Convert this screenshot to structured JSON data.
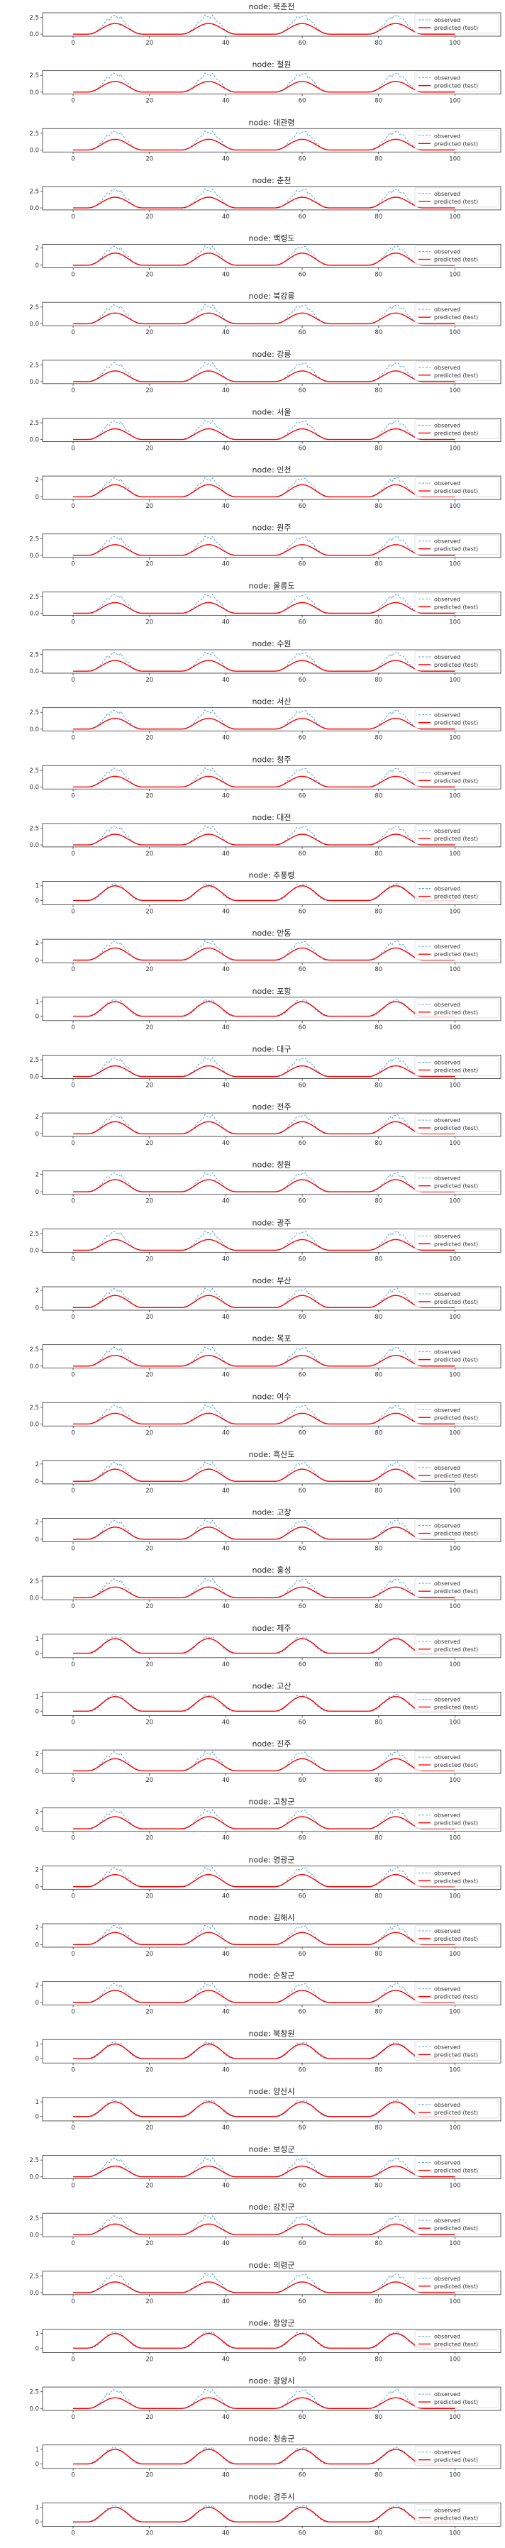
{
  "legend": {
    "observed": "observed",
    "predicted": "predicted (test)",
    "position": "top-right"
  },
  "colors": {
    "observed": "#5da5da",
    "predicted": "#ff0000",
    "axis": "#333333"
  },
  "x_ticks": [
    0,
    20,
    40,
    60,
    80,
    100
  ],
  "chart_data": [
    {
      "type": "line",
      "title": "node: 북춘천",
      "ylim": [
        -0.3,
        3.2
      ],
      "y_ticks": [
        0.0,
        2.5
      ],
      "obs_peak": 2.7,
      "pred_peak": 1.6,
      "series": [
        {
          "name": "observed"
        },
        {
          "name": "predicted (test)"
        }
      ]
    },
    {
      "type": "line",
      "title": "node: 철원",
      "ylim": [
        -0.3,
        3.2
      ],
      "y_ticks": [
        0.0,
        2.5
      ],
      "obs_peak": 2.7,
      "pred_peak": 1.6,
      "series": [
        {
          "name": "observed"
        },
        {
          "name": "predicted (test)"
        }
      ]
    },
    {
      "type": "line",
      "title": "node: 대관령",
      "ylim": [
        -0.3,
        3.2
      ],
      "y_ticks": [
        0.0,
        2.5
      ],
      "obs_peak": 2.7,
      "pred_peak": 1.6,
      "series": [
        {
          "name": "observed"
        },
        {
          "name": "predicted (test)"
        }
      ]
    },
    {
      "type": "line",
      "title": "node: 춘천",
      "ylim": [
        -0.3,
        3.2
      ],
      "y_ticks": [
        0.0,
        2.5
      ],
      "obs_peak": 2.7,
      "pred_peak": 1.6,
      "series": [
        {
          "name": "observed"
        },
        {
          "name": "predicted (test)"
        }
      ]
    },
    {
      "type": "line",
      "title": "node: 백령도",
      "ylim": [
        -0.3,
        2.4
      ],
      "y_ticks": [
        0,
        2
      ],
      "obs_peak": 2.1,
      "pred_peak": 1.4,
      "series": [
        {
          "name": "observed"
        },
        {
          "name": "predicted (test)"
        }
      ]
    },
    {
      "type": "line",
      "title": "node: 북강릉",
      "ylim": [
        -0.3,
        3.2
      ],
      "y_ticks": [
        0.0,
        2.5
      ],
      "obs_peak": 2.7,
      "pred_peak": 1.6,
      "series": [
        {
          "name": "observed"
        },
        {
          "name": "predicted (test)"
        }
      ]
    },
    {
      "type": "line",
      "title": "node: 강릉",
      "ylim": [
        -0.3,
        3.2
      ],
      "y_ticks": [
        0.0,
        2.5
      ],
      "obs_peak": 2.7,
      "pred_peak": 1.6,
      "series": [
        {
          "name": "observed"
        },
        {
          "name": "predicted (test)"
        }
      ]
    },
    {
      "type": "line",
      "title": "node: 서울",
      "ylim": [
        -0.3,
        3.2
      ],
      "y_ticks": [
        0.0,
        2.5
      ],
      "obs_peak": 2.7,
      "pred_peak": 1.6,
      "series": [
        {
          "name": "observed"
        },
        {
          "name": "predicted (test)"
        }
      ]
    },
    {
      "type": "line",
      "title": "node: 인천",
      "ylim": [
        -0.3,
        2.4
      ],
      "y_ticks": [
        0,
        2
      ],
      "obs_peak": 2.1,
      "pred_peak": 1.4,
      "series": [
        {
          "name": "observed"
        },
        {
          "name": "predicted (test)"
        }
      ]
    },
    {
      "type": "line",
      "title": "node: 원주",
      "ylim": [
        -0.3,
        3.2
      ],
      "y_ticks": [
        0.0,
        2.5
      ],
      "obs_peak": 2.7,
      "pred_peak": 1.6,
      "series": [
        {
          "name": "observed"
        },
        {
          "name": "predicted (test)"
        }
      ]
    },
    {
      "type": "line",
      "title": "node: 울릉도",
      "ylim": [
        -0.3,
        3.2
      ],
      "y_ticks": [
        0.0,
        2.5
      ],
      "obs_peak": 2.7,
      "pred_peak": 1.6,
      "series": [
        {
          "name": "observed"
        },
        {
          "name": "predicted (test)"
        }
      ]
    },
    {
      "type": "line",
      "title": "node: 수원",
      "ylim": [
        -0.3,
        3.2
      ],
      "y_ticks": [
        0.0,
        2.5
      ],
      "obs_peak": 2.7,
      "pred_peak": 1.6,
      "series": [
        {
          "name": "observed"
        },
        {
          "name": "predicted (test)"
        }
      ]
    },
    {
      "type": "line",
      "title": "node: 서산",
      "ylim": [
        -0.3,
        3.2
      ],
      "y_ticks": [
        0.0,
        2.5
      ],
      "obs_peak": 2.7,
      "pred_peak": 1.6,
      "series": [
        {
          "name": "observed"
        },
        {
          "name": "predicted (test)"
        }
      ]
    },
    {
      "type": "line",
      "title": "node: 청주",
      "ylim": [
        -0.3,
        3.2
      ],
      "y_ticks": [
        0.0,
        2.5
      ],
      "obs_peak": 2.7,
      "pred_peak": 1.6,
      "series": [
        {
          "name": "observed"
        },
        {
          "name": "predicted (test)"
        }
      ]
    },
    {
      "type": "line",
      "title": "node: 대전",
      "ylim": [
        -0.3,
        3.2
      ],
      "y_ticks": [
        0.0,
        2.5
      ],
      "obs_peak": 2.7,
      "pred_peak": 1.6,
      "series": [
        {
          "name": "observed"
        },
        {
          "name": "predicted (test)"
        }
      ]
    },
    {
      "type": "line",
      "title": "node: 추풍령",
      "ylim": [
        -0.3,
        1.3
      ],
      "y_ticks": [
        0,
        1
      ],
      "obs_peak": 1.1,
      "pred_peak": 1.0,
      "series": [
        {
          "name": "observed"
        },
        {
          "name": "predicted (test)"
        }
      ]
    },
    {
      "type": "line",
      "title": "node: 안동",
      "ylim": [
        -0.3,
        2.4
      ],
      "y_ticks": [
        0,
        2
      ],
      "obs_peak": 2.1,
      "pred_peak": 1.4,
      "series": [
        {
          "name": "observed"
        },
        {
          "name": "predicted (test)"
        }
      ]
    },
    {
      "type": "line",
      "title": "node: 포항",
      "ylim": [
        -0.3,
        1.3
      ],
      "y_ticks": [
        0,
        1
      ],
      "obs_peak": 1.1,
      "pred_peak": 1.0,
      "series": [
        {
          "name": "observed"
        },
        {
          "name": "predicted (test)"
        }
      ]
    },
    {
      "type": "line",
      "title": "node: 대구",
      "ylim": [
        -0.3,
        3.2
      ],
      "y_ticks": [
        0.0,
        2.5
      ],
      "obs_peak": 2.7,
      "pred_peak": 1.6,
      "series": [
        {
          "name": "observed"
        },
        {
          "name": "predicted (test)"
        }
      ]
    },
    {
      "type": "line",
      "title": "node: 전주",
      "ylim": [
        -0.3,
        2.4
      ],
      "y_ticks": [
        0,
        2
      ],
      "obs_peak": 2.1,
      "pred_peak": 1.4,
      "series": [
        {
          "name": "observed"
        },
        {
          "name": "predicted (test)"
        }
      ]
    },
    {
      "type": "line",
      "title": "node: 창원",
      "ylim": [
        -0.3,
        2.4
      ],
      "y_ticks": [
        0,
        2
      ],
      "obs_peak": 2.1,
      "pred_peak": 1.4,
      "series": [
        {
          "name": "observed"
        },
        {
          "name": "predicted (test)"
        }
      ]
    },
    {
      "type": "line",
      "title": "node: 광주",
      "ylim": [
        -0.3,
        3.2
      ],
      "y_ticks": [
        0.0,
        2.5
      ],
      "obs_peak": 2.7,
      "pred_peak": 1.6,
      "series": [
        {
          "name": "observed"
        },
        {
          "name": "predicted (test)"
        }
      ]
    },
    {
      "type": "line",
      "title": "node: 부산",
      "ylim": [
        -0.3,
        2.4
      ],
      "y_ticks": [
        0,
        2
      ],
      "obs_peak": 2.1,
      "pred_peak": 1.4,
      "series": [
        {
          "name": "observed"
        },
        {
          "name": "predicted (test)"
        }
      ]
    },
    {
      "type": "line",
      "title": "node: 목포",
      "ylim": [
        -0.3,
        3.2
      ],
      "y_ticks": [
        0.0,
        2.5
      ],
      "obs_peak": 2.7,
      "pred_peak": 1.6,
      "series": [
        {
          "name": "observed"
        },
        {
          "name": "predicted (test)"
        }
      ]
    },
    {
      "type": "line",
      "title": "node: 여수",
      "ylim": [
        -0.3,
        3.2
      ],
      "y_ticks": [
        0.0,
        2.5
      ],
      "obs_peak": 2.7,
      "pred_peak": 1.6,
      "series": [
        {
          "name": "observed"
        },
        {
          "name": "predicted (test)"
        }
      ]
    },
    {
      "type": "line",
      "title": "node: 흑산도",
      "ylim": [
        -0.3,
        2.4
      ],
      "y_ticks": [
        0,
        2
      ],
      "obs_peak": 2.1,
      "pred_peak": 1.4,
      "series": [
        {
          "name": "observed"
        },
        {
          "name": "predicted (test)"
        }
      ]
    },
    {
      "type": "line",
      "title": "node: 고창",
      "ylim": [
        -0.3,
        2.4
      ],
      "y_ticks": [
        0,
        2
      ],
      "obs_peak": 2.1,
      "pred_peak": 1.4,
      "series": [
        {
          "name": "observed"
        },
        {
          "name": "predicted (test)"
        }
      ]
    },
    {
      "type": "line",
      "title": "node: 홍성",
      "ylim": [
        -0.3,
        3.2
      ],
      "y_ticks": [
        0.0,
        2.5
      ],
      "obs_peak": 2.7,
      "pred_peak": 1.6,
      "series": [
        {
          "name": "observed"
        },
        {
          "name": "predicted (test)"
        }
      ]
    },
    {
      "type": "line",
      "title": "node: 제주",
      "ylim": [
        -0.3,
        1.3
      ],
      "y_ticks": [
        0,
        1
      ],
      "obs_peak": 1.1,
      "pred_peak": 1.0,
      "series": [
        {
          "name": "observed"
        },
        {
          "name": "predicted (test)"
        }
      ]
    },
    {
      "type": "line",
      "title": "node: 고산",
      "ylim": [
        -0.3,
        1.3
      ],
      "y_ticks": [
        0,
        1
      ],
      "obs_peak": 1.1,
      "pred_peak": 1.0,
      "series": [
        {
          "name": "observed"
        },
        {
          "name": "predicted (test)"
        }
      ]
    },
    {
      "type": "line",
      "title": "node: 진주",
      "ylim": [
        -0.3,
        2.4
      ],
      "y_ticks": [
        0,
        2
      ],
      "obs_peak": 2.1,
      "pred_peak": 1.4,
      "series": [
        {
          "name": "observed"
        },
        {
          "name": "predicted (test)"
        }
      ]
    },
    {
      "type": "line",
      "title": "node: 고창군",
      "ylim": [
        -0.3,
        2.4
      ],
      "y_ticks": [
        0,
        2
      ],
      "obs_peak": 2.1,
      "pred_peak": 1.4,
      "series": [
        {
          "name": "observed"
        },
        {
          "name": "predicted (test)"
        }
      ]
    },
    {
      "type": "line",
      "title": "node: 영광군",
      "ylim": [
        -0.3,
        2.4
      ],
      "y_ticks": [
        0,
        2
      ],
      "obs_peak": 2.1,
      "pred_peak": 1.4,
      "series": [
        {
          "name": "observed"
        },
        {
          "name": "predicted (test)"
        }
      ]
    },
    {
      "type": "line",
      "title": "node: 김해시",
      "ylim": [
        -0.3,
        2.4
      ],
      "y_ticks": [
        0,
        2
      ],
      "obs_peak": 2.1,
      "pred_peak": 1.4,
      "series": [
        {
          "name": "observed"
        },
        {
          "name": "predicted (test)"
        }
      ]
    },
    {
      "type": "line",
      "title": "node: 순창군",
      "ylim": [
        -0.3,
        2.4
      ],
      "y_ticks": [
        0,
        2
      ],
      "obs_peak": 2.1,
      "pred_peak": 1.4,
      "series": [
        {
          "name": "observed"
        },
        {
          "name": "predicted (test)"
        }
      ]
    },
    {
      "type": "line",
      "title": "node: 북창원",
      "ylim": [
        -0.3,
        1.3
      ],
      "y_ticks": [
        0,
        1
      ],
      "obs_peak": 1.1,
      "pred_peak": 1.0,
      "series": [
        {
          "name": "observed"
        },
        {
          "name": "predicted (test)"
        }
      ]
    },
    {
      "type": "line",
      "title": "node: 양산시",
      "ylim": [
        -0.3,
        1.3
      ],
      "y_ticks": [
        0,
        1
      ],
      "obs_peak": 1.1,
      "pred_peak": 1.0,
      "series": [
        {
          "name": "observed"
        },
        {
          "name": "predicted (test)"
        }
      ]
    },
    {
      "type": "line",
      "title": "node: 보성군",
      "ylim": [
        -0.3,
        3.2
      ],
      "y_ticks": [
        0.0,
        2.5
      ],
      "obs_peak": 2.7,
      "pred_peak": 1.6,
      "series": [
        {
          "name": "observed"
        },
        {
          "name": "predicted (test)"
        }
      ]
    },
    {
      "type": "line",
      "title": "node: 강진군",
      "ylim": [
        -0.3,
        3.2
      ],
      "y_ticks": [
        0.0,
        2.5
      ],
      "obs_peak": 2.7,
      "pred_peak": 1.6,
      "series": [
        {
          "name": "observed"
        },
        {
          "name": "predicted (test)"
        }
      ]
    },
    {
      "type": "line",
      "title": "node: 의령군",
      "ylim": [
        -0.3,
        3.2
      ],
      "y_ticks": [
        0.0,
        2.5
      ],
      "obs_peak": 2.7,
      "pred_peak": 1.6,
      "series": [
        {
          "name": "observed"
        },
        {
          "name": "predicted (test)"
        }
      ]
    },
    {
      "type": "line",
      "title": "node: 함양군",
      "ylim": [
        -0.3,
        1.3
      ],
      "y_ticks": [
        0,
        1
      ],
      "obs_peak": 1.1,
      "pred_peak": 1.0,
      "series": [
        {
          "name": "observed"
        },
        {
          "name": "predicted (test)"
        }
      ]
    },
    {
      "type": "line",
      "title": "node: 광양시",
      "ylim": [
        -0.3,
        3.2
      ],
      "y_ticks": [
        0.0,
        2.5
      ],
      "obs_peak": 2.7,
      "pred_peak": 1.6,
      "series": [
        {
          "name": "observed"
        },
        {
          "name": "predicted (test)"
        }
      ]
    },
    {
      "type": "line",
      "title": "node: 청송군",
      "ylim": [
        -0.3,
        1.3
      ],
      "y_ticks": [
        0,
        1
      ],
      "obs_peak": 1.1,
      "pred_peak": 1.0,
      "series": [
        {
          "name": "observed"
        },
        {
          "name": "predicted (test)"
        }
      ]
    },
    {
      "type": "line",
      "title": "node: 경주시",
      "ylim": [
        -0.3,
        1.3
      ],
      "y_ticks": [
        0,
        1
      ],
      "obs_peak": 1.1,
      "pred_peak": 1.0,
      "series": [
        {
          "name": "observed"
        },
        {
          "name": "predicted (test)"
        }
      ]
    }
  ]
}
